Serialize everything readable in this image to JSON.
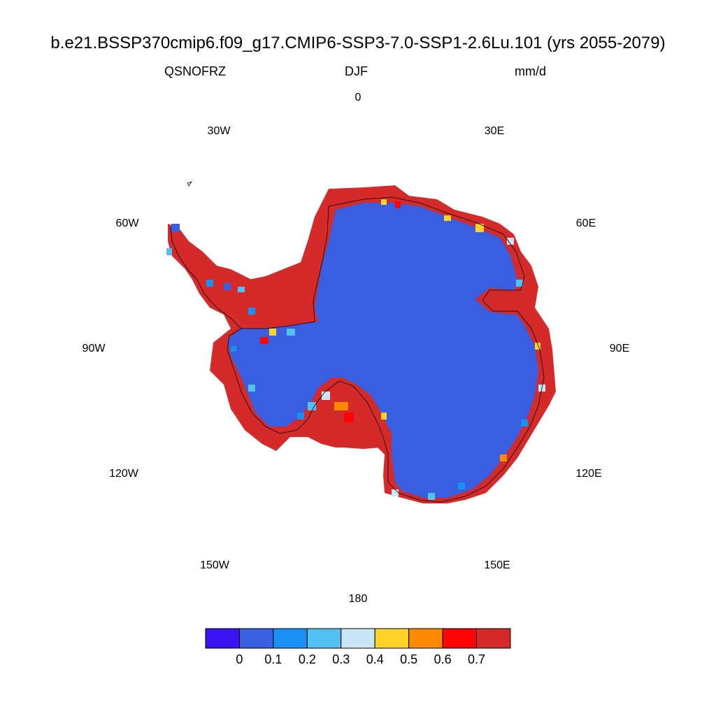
{
  "title": "b.e21.BSSP370cmip6.f09_g17.CMIP6-SSP3-7.0-SSP1-2.6Lu.101 (yrs 2055-2079)",
  "variable": "QSNOFRZ",
  "season": "DJF",
  "units": "mm/d",
  "longitude_labels": {
    "lon_0": "0",
    "lon_30e": "30E",
    "lon_60e": "60E",
    "lon_90e": "90E",
    "lon_120e": "120E",
    "lon_150e": "150E",
    "lon_180": "180",
    "lon_150w": "150W",
    "lon_120w": "120W",
    "lon_90w": "90W",
    "lon_60w": "60W",
    "lon_30w": "30W"
  },
  "colorbar": {
    "colors": [
      "#3b13f2",
      "#3860e0",
      "#1a90f5",
      "#52c0f0",
      "#c8e6f6",
      "#fed22a",
      "#fd8a00",
      "#fd0505",
      "#d42a2a"
    ],
    "labels": [
      "0",
      "0.1",
      "0.2",
      "0.3",
      "0.4",
      "0.5",
      "0.6",
      "0.7"
    ]
  },
  "map": {
    "interior_color": "#3a5ee0",
    "coast_color": "#d52a2a",
    "projection": "south polar stereographic"
  }
}
